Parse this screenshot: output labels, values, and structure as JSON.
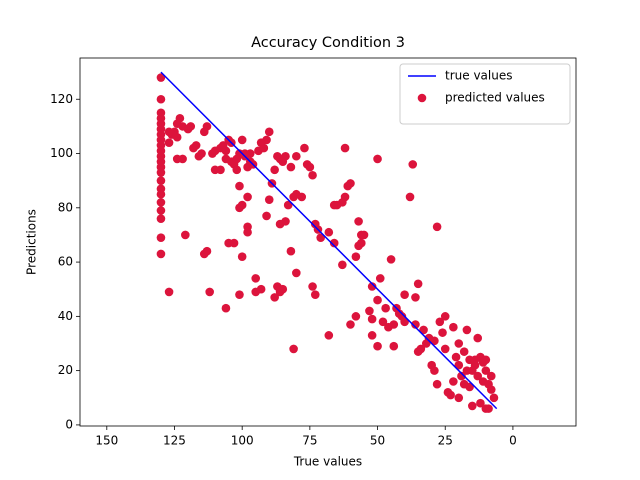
{
  "chart_data": {
    "type": "scatter",
    "title": "Accuracy Condition 3",
    "xlabel": "True values",
    "ylabel": "Predictions",
    "xlim": [
      159.9,
      -23.3
    ],
    "ylim": [
      -0.4,
      135.2
    ],
    "xticks": [
      150,
      125,
      100,
      75,
      50,
      25,
      0
    ],
    "yticks": [
      0,
      20,
      40,
      60,
      80,
      100,
      120
    ],
    "legend": "upper right",
    "series": [
      {
        "name": "true values",
        "type": "line",
        "color": "#0000ff",
        "x": [
          130,
          6
        ],
        "y": [
          130,
          6
        ]
      },
      {
        "name": "predicted values",
        "type": "scatter",
        "color": "#dc143c",
        "x": [
          130,
          130,
          130,
          130,
          130,
          130,
          130,
          130,
          130,
          130,
          130,
          130,
          130,
          130,
          130,
          130,
          130,
          130,
          130,
          130,
          130,
          130,
          127,
          125,
          124,
          123,
          122,
          120,
          118,
          116,
          115,
          114,
          113,
          124,
          122,
          126,
          121,
          114,
          112,
          110,
          108,
          107,
          106,
          105,
          104,
          103,
          102,
          101,
          100,
          99,
          98,
          97,
          98,
          100,
          101,
          101,
          98,
          98,
          103,
          105,
          106,
          100,
          101,
          93,
          95,
          95,
          91,
          90,
          89,
          88,
          87,
          86,
          85,
          84,
          82,
          80,
          77,
          76,
          75,
          74,
          73,
          71,
          72,
          78,
          80,
          81,
          83,
          84,
          86,
          82,
          80,
          85,
          86,
          88,
          87,
          74,
          73,
          68,
          81,
          63,
          62,
          61,
          60,
          62,
          65,
          66,
          68,
          66,
          63,
          57,
          56,
          55,
          52,
          50,
          49,
          47,
          45,
          44,
          43,
          42,
          41,
          40,
          40,
          38,
          37,
          36,
          36,
          35,
          33,
          32,
          31,
          30,
          29,
          28,
          27,
          28,
          26,
          25,
          24,
          23,
          22,
          21,
          20,
          20,
          19,
          18,
          17,
          16,
          15,
          14,
          13,
          12,
          11,
          10,
          9,
          8,
          7,
          15,
          18,
          20,
          13,
          11,
          10,
          9,
          12,
          16,
          22,
          25,
          17,
          14,
          10,
          8,
          60,
          58,
          52,
          50,
          53,
          48,
          52,
          56,
          57,
          50,
          58,
          35,
          34,
          29,
          46,
          44,
          94,
          92,
          91,
          90,
          93,
          96,
          97,
          99,
          102,
          104,
          106,
          108,
          110,
          111,
          113,
          117,
          119,
          124,
          127,
          127
        ],
        "y": [
          128,
          120,
          115,
          113,
          111,
          109,
          107,
          105,
          103,
          101,
          99,
          97,
          95,
          93,
          90,
          87,
          85,
          82,
          79,
          76,
          69,
          63,
          49,
          108,
          106,
          113,
          110,
          109,
          102,
          99,
          100,
          108,
          110,
          98,
          98,
          107,
          70,
          63,
          49,
          94,
          102,
          103,
          98,
          105,
          97,
          96,
          94,
          100,
          105,
          100,
          95,
          97,
          84,
          81,
          88,
          80,
          73,
          71,
          67,
          67,
          43,
          62,
          48,
          50,
          49,
          54,
          77,
          83,
          89,
          94,
          99,
          98,
          97,
          99,
          95,
          99,
          102,
          96,
          95,
          92,
          74,
          69,
          72,
          84,
          85,
          84,
          81,
          75,
          74,
          64,
          56,
          50,
          49,
          47,
          51,
          51,
          48,
          33,
          28,
          82,
          84,
          88,
          89,
          102,
          81,
          81,
          71,
          67,
          59,
          75,
          67,
          70,
          51,
          46,
          54,
          43,
          61,
          37,
          43,
          41,
          40,
          38,
          48,
          84,
          96,
          47,
          37,
          27,
          35,
          30,
          32,
          22,
          20,
          15,
          38,
          73,
          34,
          40,
          12,
          11,
          36,
          25,
          22,
          30,
          18,
          27,
          35,
          24,
          20,
          22,
          32,
          25,
          23,
          20,
          15,
          13,
          10,
          7,
          15,
          10,
          18,
          16,
          6,
          6,
          8,
          14,
          16,
          28,
          20,
          24,
          24,
          18,
          37,
          40,
          39,
          29,
          42,
          38,
          33,
          70,
          66,
          98,
          62,
          52,
          28,
          31,
          36,
          29,
          101,
          102,
          105,
          108,
          104,
          96,
          100,
          99,
          98,
          104,
          101,
          94,
          101,
          100,
          64,
          103,
          110,
          111,
          104,
          108
        ]
      }
    ]
  }
}
